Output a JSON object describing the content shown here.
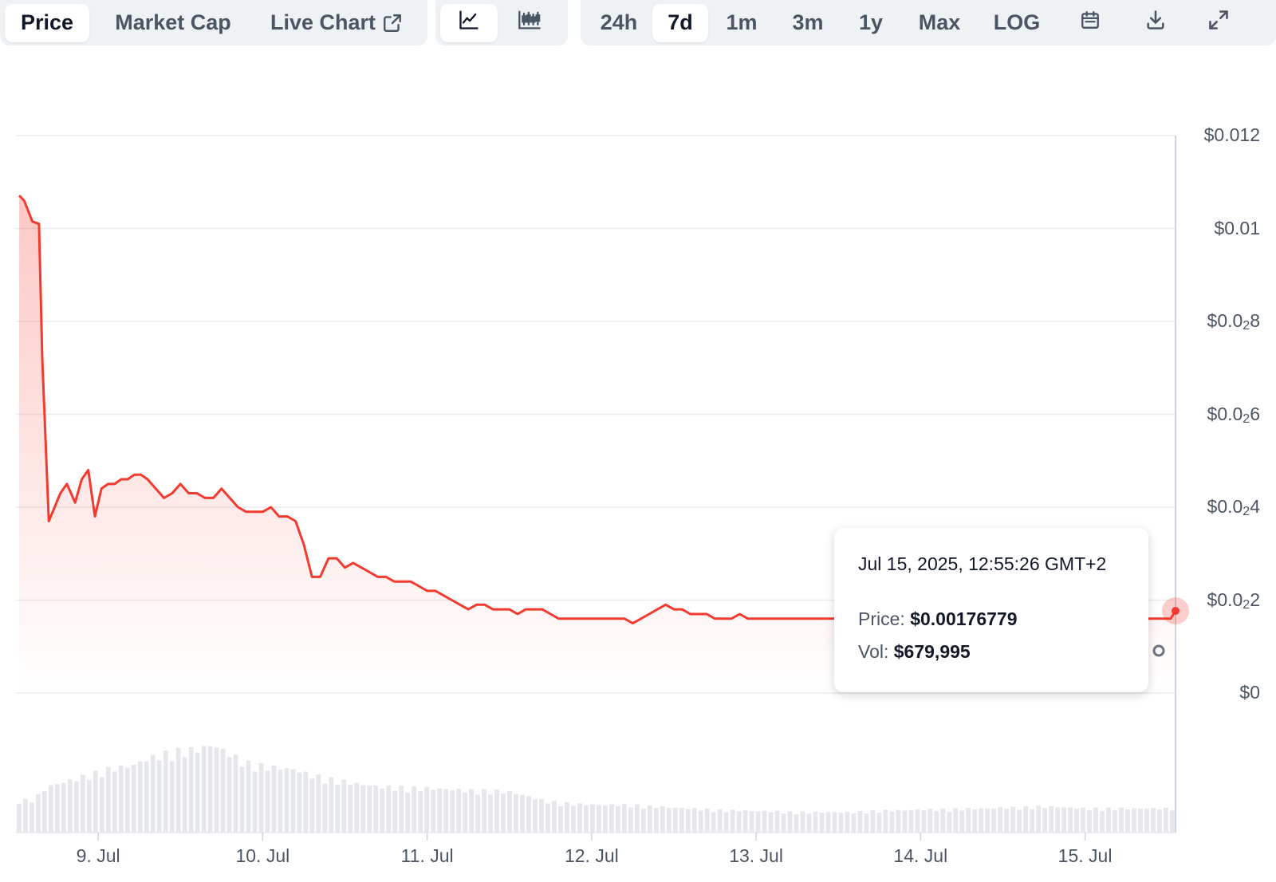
{
  "toolbar": {
    "tabs": [
      {
        "label": "Price",
        "active": true
      },
      {
        "label": "Market Cap",
        "active": false
      },
      {
        "label": "Live Chart",
        "active": false,
        "icon": "external-link-icon"
      }
    ],
    "chart_type_icons": [
      "line-chart-icon",
      "candlestick-chart-icon"
    ],
    "ranges": [
      {
        "label": "24h",
        "active": false
      },
      {
        "label": "7d",
        "active": true
      },
      {
        "label": "1m",
        "active": false
      },
      {
        "label": "3m",
        "active": false
      },
      {
        "label": "1y",
        "active": false
      },
      {
        "label": "Max",
        "active": false
      },
      {
        "label": "LOG",
        "active": false
      }
    ],
    "tool_icons": [
      "calendar-icon",
      "download-icon",
      "fullscreen-icon"
    ]
  },
  "tooltip": {
    "timestamp": "Jul 15, 2025, 12:55:26 GMT+2",
    "price_label": "Price:",
    "price_value": "$0.00176779",
    "vol_label": "Vol:",
    "vol_value": "$679,995"
  },
  "colors": {
    "line": "#f23a2f",
    "volume": "#e5e7eb",
    "grid": "#e9ecef"
  },
  "chart_data": {
    "type": "area",
    "title": "",
    "xlabel": "",
    "ylabel": "",
    "y_ticks": [
      {
        "main": "$0.012",
        "sub": ""
      },
      {
        "main": "$0.01",
        "sub": ""
      },
      {
        "main": "$0.0",
        "sub": "2",
        "rest": "8"
      },
      {
        "main": "$0.0",
        "sub": "2",
        "rest": "6"
      },
      {
        "main": "$0.0",
        "sub": "2",
        "rest": "4"
      },
      {
        "main": "$0.0",
        "sub": "2",
        "rest": "2"
      },
      {
        "main": "$0",
        "sub": ""
      }
    ],
    "ylim": [
      0,
      0.012
    ],
    "x_ticks": [
      "9. Jul",
      "10. Jul",
      "11. Jul",
      "12. Jul",
      "13. Jul",
      "14. Jul",
      "15. Jul"
    ],
    "xlim_days": [
      8.5,
      15.55
    ],
    "series": [
      {
        "name": "Price",
        "x_days": [
          8.52,
          8.55,
          8.6,
          8.64,
          8.66,
          8.7,
          8.77,
          8.81,
          8.86,
          8.9,
          8.94,
          8.98,
          9.02,
          9.06,
          9.1,
          9.14,
          9.18,
          9.22,
          9.26,
          9.3,
          9.35,
          9.4,
          9.45,
          9.5,
          9.55,
          9.6,
          9.65,
          9.7,
          9.75,
          9.8,
          9.85,
          9.9,
          9.95,
          10.0,
          10.05,
          10.1,
          10.15,
          10.2,
          10.25,
          10.3,
          10.35,
          10.4,
          10.45,
          10.5,
          10.55,
          10.6,
          10.65,
          10.7,
          10.75,
          10.8,
          10.85,
          10.9,
          10.95,
          11.0,
          11.05,
          11.1,
          11.15,
          11.2,
          11.25,
          11.3,
          11.35,
          11.4,
          11.45,
          11.5,
          11.55,
          11.6,
          11.65,
          11.7,
          11.75,
          11.8,
          11.85,
          11.9,
          11.95,
          12.0,
          12.05,
          12.1,
          12.15,
          12.2,
          12.25,
          12.3,
          12.35,
          12.4,
          12.45,
          12.5,
          12.55,
          12.6,
          12.65,
          12.7,
          12.75,
          12.8,
          12.85,
          12.9,
          12.95,
          13.0,
          13.05,
          13.1,
          13.15,
          13.2,
          13.25,
          13.3,
          13.35,
          13.4,
          13.45,
          13.5
        ],
        "values": [
          0.01071,
          0.0106,
          0.01015,
          0.0101,
          0.0072,
          0.0037,
          0.0043,
          0.0045,
          0.0041,
          0.0046,
          0.0048,
          0.0038,
          0.0044,
          0.0045,
          0.0045,
          0.0046,
          0.0046,
          0.0047,
          0.0047,
          0.0046,
          0.0044,
          0.0042,
          0.0043,
          0.0045,
          0.0043,
          0.0043,
          0.0042,
          0.0042,
          0.0044,
          0.0042,
          0.004,
          0.0039,
          0.0039,
          0.0039,
          0.004,
          0.0038,
          0.0038,
          0.0037,
          0.0032,
          0.0025,
          0.0025,
          0.0029,
          0.0029,
          0.0027,
          0.0028,
          0.0027,
          0.0026,
          0.0025,
          0.0025,
          0.0024,
          0.0024,
          0.0024,
          0.0023,
          0.0022,
          0.0022,
          0.0021,
          0.002,
          0.0019,
          0.0018,
          0.0019,
          0.0019,
          0.0018,
          0.0018,
          0.0018,
          0.0017,
          0.0018,
          0.0018,
          0.0018,
          0.0017,
          0.0016,
          0.0016,
          0.0016,
          0.0016,
          0.0016,
          0.0016,
          0.0016,
          0.0016,
          0.0016,
          0.0015,
          0.0016,
          0.0017,
          0.0018,
          0.0019,
          0.0018,
          0.0018,
          0.0017,
          0.0017,
          0.0017,
          0.0016,
          0.0016,
          0.0016,
          0.0017,
          0.0016,
          0.0016,
          0.0016,
          0.0016,
          0.0016,
          0.0016,
          0.0016,
          0.0016,
          0.0016,
          0.0016,
          0.0016,
          0.0016
        ]
      },
      {
        "name": "Volume",
        "x_days": [
          8.5,
          8.6,
          8.7,
          8.8,
          8.9,
          9.0,
          9.1,
          9.2,
          9.3,
          9.4,
          9.5,
          9.6,
          9.7,
          9.8,
          9.9,
          10.0,
          10.1,
          10.2,
          10.3,
          10.4,
          10.5,
          10.6,
          10.7,
          10.8,
          10.9,
          11.0,
          11.1,
          11.2,
          11.3,
          11.4,
          11.5,
          11.6,
          11.7,
          11.8,
          11.9,
          12.0,
          12.1,
          12.2,
          12.3,
          12.4,
          12.5,
          12.6,
          12.7,
          12.8,
          12.9,
          13.0,
          13.1,
          13.2,
          13.3,
          13.4,
          13.5,
          13.6,
          13.7,
          13.8,
          13.9,
          14.0,
          14.1,
          14.2,
          14.3,
          14.4,
          14.5,
          14.6,
          14.7,
          14.8,
          14.9,
          15.0,
          15.1,
          15.2,
          15.3,
          15.4,
          15.5
        ],
        "values": [
          0.35,
          0.35,
          0.5,
          0.55,
          0.6,
          0.65,
          0.7,
          0.72,
          0.8,
          0.85,
          0.88,
          0.9,
          0.95,
          0.85,
          0.75,
          0.72,
          0.7,
          0.68,
          0.62,
          0.58,
          0.55,
          0.52,
          0.5,
          0.49,
          0.48,
          0.48,
          0.47,
          0.46,
          0.45,
          0.45,
          0.44,
          0.4,
          0.35,
          0.32,
          0.31,
          0.3,
          0.3,
          0.3,
          0.29,
          0.28,
          0.27,
          0.26,
          0.25,
          0.24,
          0.24,
          0.23,
          0.23,
          0.22,
          0.22,
          0.22,
          0.22,
          0.22,
          0.23,
          0.24,
          0.24,
          0.25,
          0.25,
          0.25,
          0.26,
          0.26,
          0.27,
          0.27,
          0.28,
          0.28,
          0.27,
          0.26,
          0.26,
          0.26,
          0.26,
          0.26,
          0.26
        ]
      }
    ],
    "hover_point": {
      "x_day": 15.55,
      "value": 0.00176779
    }
  }
}
